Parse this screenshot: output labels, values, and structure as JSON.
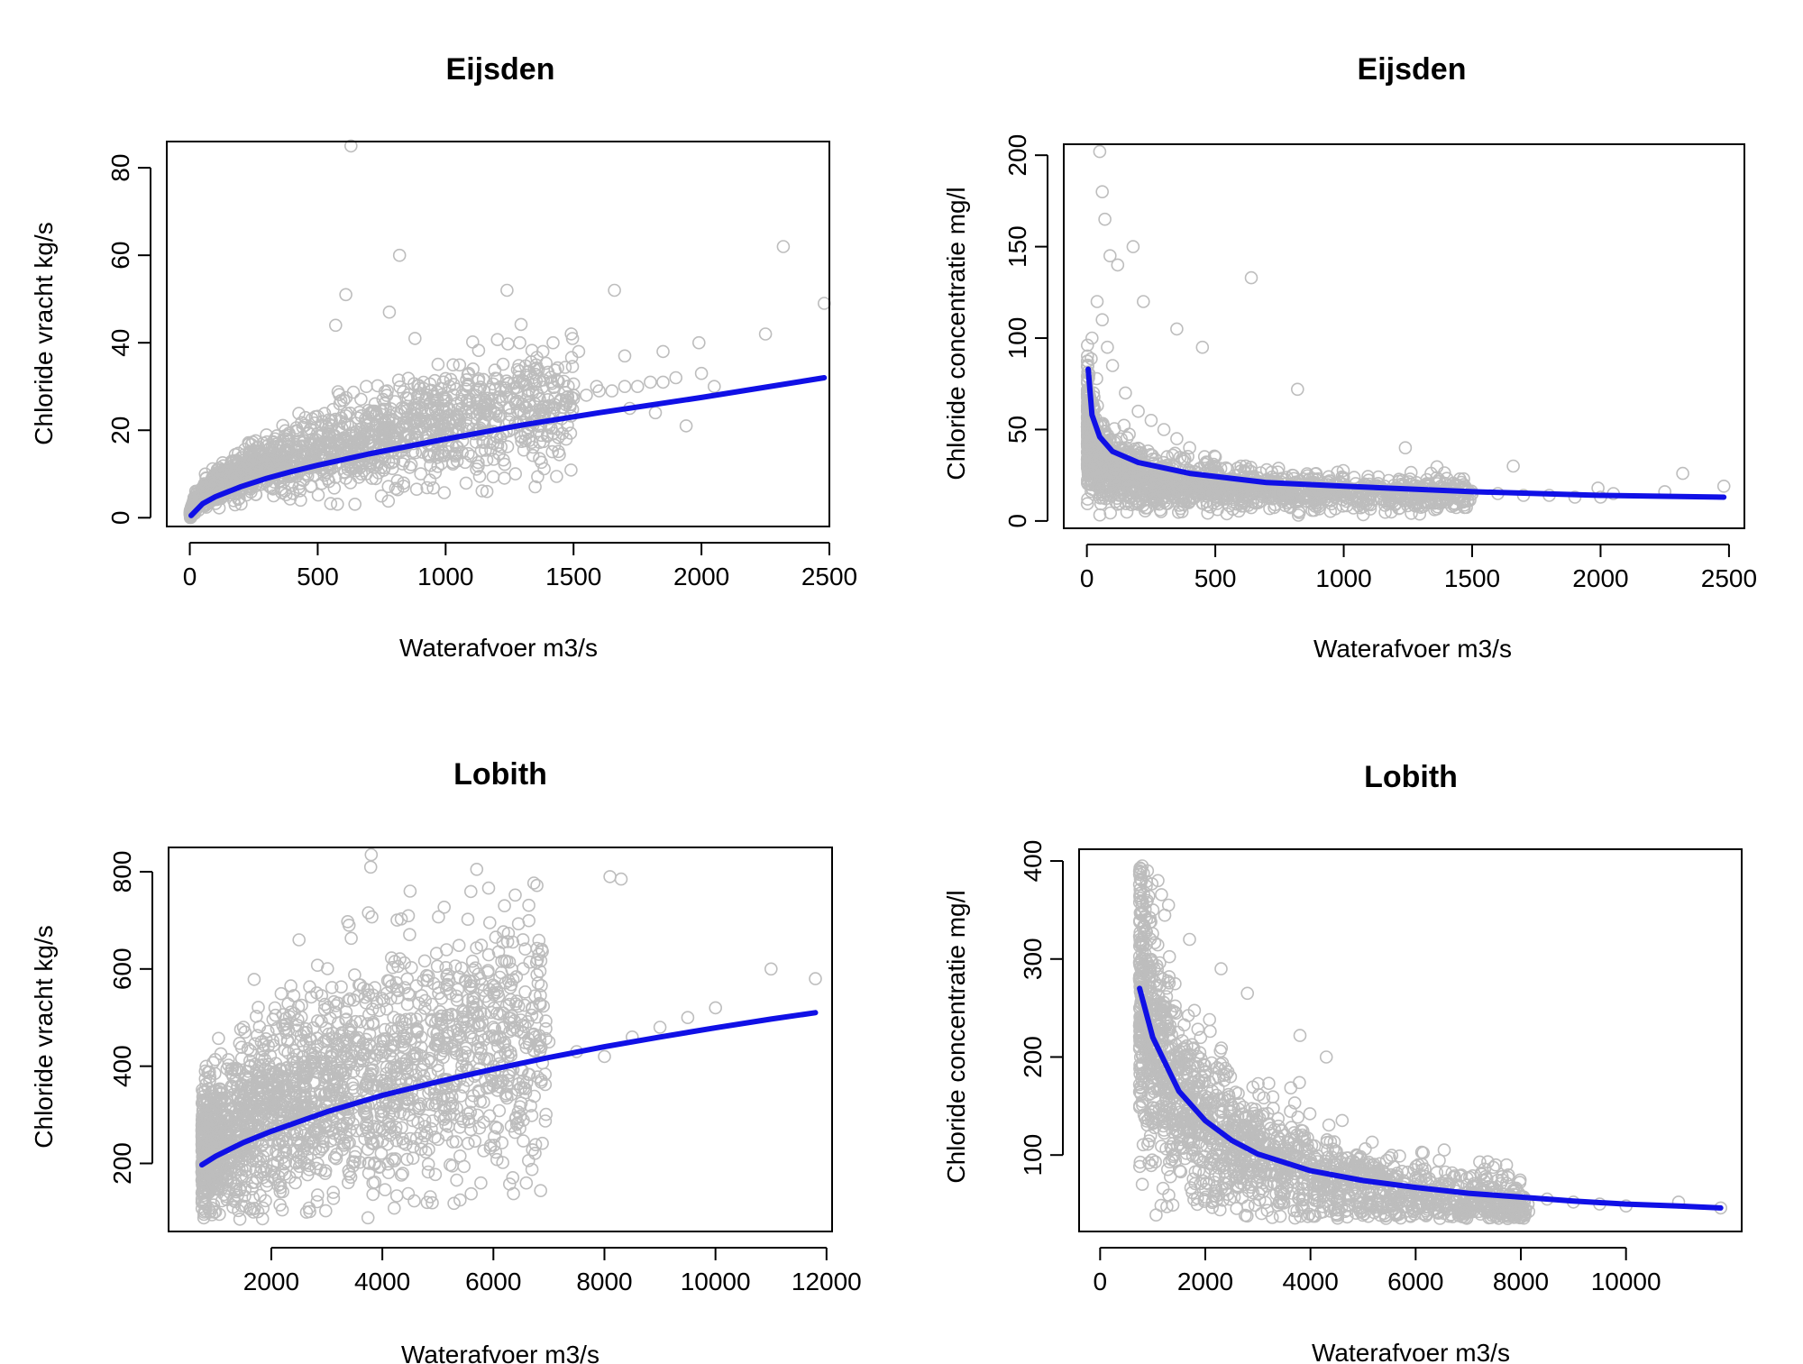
{
  "figure": {
    "colors": {
      "points": "#bdbdbd",
      "fit_line": "#1010e6",
      "axis": "#000000",
      "background": "#ffffff"
    }
  },
  "chart_data": [
    {
      "type": "scatter",
      "title": "Eijsden",
      "xlabel": "Waterafvoer m3/s",
      "ylabel": "Chloride vracht kg/s",
      "xlim": [
        -90,
        2500
      ],
      "ylim": [
        -2,
        86
      ],
      "xticks": [
        0,
        500,
        1000,
        1500,
        2000,
        2500
      ],
      "yticks": [
        0,
        20,
        40,
        60,
        80
      ],
      "series": [
        {
          "kind": "points",
          "description_of_cloud": "dense cloud, load increasing with discharge",
          "x": [
            20,
            60,
            100,
            150,
            200,
            250,
            300,
            350,
            400,
            450,
            500,
            550,
            600,
            650,
            700,
            750,
            800,
            850,
            900,
            950,
            1000,
            1050,
            1100,
            1150,
            1200,
            1250,
            1300,
            1350,
            1400,
            1450,
            1500,
            1550,
            1600,
            1650,
            1700,
            1750,
            1800,
            1850,
            1900,
            2000,
            2050,
            2250,
            2320,
            2480,
            630,
            820,
            1240,
            1660,
            1990,
            1700,
            1850,
            1590,
            780,
            880,
            1090,
            1290,
            1380,
            1420,
            1520,
            1720,
            1820,
            1940,
            610,
            690,
            570
          ],
          "y": [
            1,
            3,
            5,
            7,
            9,
            10,
            12,
            13,
            14,
            15,
            16,
            17,
            18,
            19,
            19,
            20,
            20,
            21,
            22,
            22,
            23,
            23,
            24,
            24,
            25,
            25,
            26,
            26,
            27,
            27,
            28,
            28,
            29,
            29,
            30,
            30,
            31,
            31,
            32,
            33,
            30,
            42,
            62,
            49,
            85,
            60,
            52,
            52,
            40,
            37,
            38,
            30,
            47,
            41,
            33,
            40,
            38,
            40,
            38,
            25,
            24,
            21,
            51,
            30,
            44
          ]
        },
        {
          "kind": "fit_line",
          "x": [
            5,
            50,
            100,
            200,
            300,
            400,
            500,
            700,
            1000,
            1300,
            1600,
            2000,
            2480
          ],
          "y": [
            0.5,
            3.2,
            4.8,
            7.1,
            9.0,
            10.6,
            12.0,
            14.6,
            18.0,
            21.2,
            24.0,
            27.5,
            32.0
          ]
        }
      ]
    },
    {
      "type": "scatter",
      "title": "Eijsden",
      "xlabel": "Waterafvoer m3/s",
      "ylabel": "Chloride concentratie mg/l",
      "xlim": [
        -90,
        2560
      ],
      "ylim": [
        -4,
        206
      ],
      "xticks": [
        0,
        500,
        1000,
        1500,
        2000,
        2500
      ],
      "yticks": [
        0,
        50,
        100,
        150,
        200
      ],
      "series": [
        {
          "kind": "points",
          "description_of_cloud": "dense cloud at low discharge, concentration decreasing with discharge",
          "x": [
            20,
            40,
            60,
            80,
            100,
            150,
            200,
            250,
            300,
            350,
            400,
            500,
            600,
            700,
            800,
            900,
            1000,
            1100,
            1200,
            1300,
            1400,
            1500,
            1600,
            1700,
            1800,
            1900,
            2000,
            2050,
            2250,
            2320,
            2480,
            50,
            60,
            70,
            90,
            120,
            180,
            220,
            350,
            450,
            640,
            820,
            1240,
            1660,
            1990
          ],
          "y": [
            100,
            120,
            110,
            95,
            85,
            70,
            60,
            55,
            50,
            45,
            40,
            35,
            30,
            28,
            25,
            23,
            20,
            19,
            18,
            17,
            16,
            15,
            15,
            14,
            14,
            13,
            13,
            15,
            16,
            26,
            19,
            202,
            180,
            165,
            145,
            140,
            150,
            120,
            105,
            95,
            133,
            72,
            40,
            30,
            18
          ]
        },
        {
          "kind": "fit_line",
          "x": [
            5,
            20,
            50,
            100,
            200,
            400,
            700,
            1000,
            1500,
            2000,
            2480
          ],
          "y": [
            83,
            58,
            46,
            38,
            32,
            26,
            21,
            19,
            16,
            14,
            13
          ]
        }
      ]
    },
    {
      "type": "scatter",
      "title": "Lobith",
      "xlabel": "Waterafvoer m3/s",
      "ylabel": "Chloride vracht kg/s",
      "xlim": [
        150,
        12100
      ],
      "ylim": [
        60,
        850
      ],
      "xticks": [
        2000,
        4000,
        6000,
        8000,
        10000,
        12000
      ],
      "yticks": [
        200,
        400,
        600,
        800
      ],
      "series": [
        {
          "kind": "points",
          "description_of_cloud": "very dense cloud between 800 and 6000 m3/s, load increasing with discharge",
          "x": [
            800,
            1000,
            1200,
            1500,
            1800,
            2000,
            2300,
            2600,
            3000,
            3300,
            3600,
            4000,
            4300,
            4700,
            5000,
            5500,
            6000,
            6500,
            7000,
            7500,
            8000,
            8500,
            9000,
            9500,
            10000,
            11000,
            11800,
            3800,
            5700,
            8100,
            8300,
            4500,
            6200,
            3400,
            2500,
            1500,
            900
          ],
          "y": [
            150,
            250,
            300,
            330,
            350,
            360,
            380,
            400,
            410,
            420,
            430,
            440,
            450,
            460,
            470,
            480,
            480,
            470,
            450,
            430,
            420,
            460,
            480,
            500,
            520,
            600,
            580,
            835,
            805,
            790,
            785,
            760,
            730,
            690,
            660,
            480,
            100
          ]
        },
        {
          "kind": "fit_line",
          "x": [
            750,
            1000,
            1500,
            2000,
            3000,
            4000,
            5000,
            6000,
            7000,
            8000,
            9000,
            10000,
            11000,
            11800
          ],
          "y": [
            197,
            215,
            243,
            266,
            306,
            340,
            368,
            394,
            418,
            440,
            460,
            479,
            497,
            510
          ]
        }
      ]
    },
    {
      "type": "scatter",
      "title": "Lobith",
      "xlabel": "Waterafvoer m3/s",
      "ylabel": "Chloride concentratie mg/l",
      "xlim": [
        -400,
        12200
      ],
      "ylim": [
        22,
        412
      ],
      "xticks": [
        0,
        2000,
        4000,
        6000,
        8000,
        10000
      ],
      "yticks": [
        100,
        200,
        300,
        400
      ],
      "series": [
        {
          "kind": "points",
          "description_of_cloud": "dense cloud at low discharge, concentration decreasing with discharge",
          "x": [
            750,
            850,
            1000,
            1200,
            1500,
            1800,
            2000,
            2300,
            2600,
            3000,
            3300,
            3600,
            4000,
            4300,
            4700,
            5000,
            5500,
            6000,
            6500,
            7000,
            7500,
            8000,
            8500,
            9000,
            9500,
            10000,
            11000,
            11800,
            800,
            900,
            1100,
            1300,
            1700,
            2300,
            2800,
            3800,
            4300
          ],
          "y": [
            280,
            300,
            260,
            230,
            200,
            180,
            160,
            145,
            130,
            120,
            110,
            100,
            95,
            90,
            85,
            80,
            75,
            70,
            65,
            62,
            60,
            58,
            55,
            52,
            50,
            48,
            52,
            46,
            395,
            390,
            380,
            355,
            320,
            290,
            265,
            222,
            200
          ]
        },
        {
          "kind": "fit_line",
          "x": [
            750,
            1000,
            1500,
            2000,
            2500,
            3000,
            4000,
            5000,
            6000,
            7000,
            8000,
            9000,
            10000,
            11000,
            11800
          ],
          "y": [
            270,
            220,
            165,
            135,
            115,
            101,
            84,
            74,
            67,
            61,
            57,
            53,
            50,
            48,
            46
          ]
        }
      ]
    }
  ]
}
